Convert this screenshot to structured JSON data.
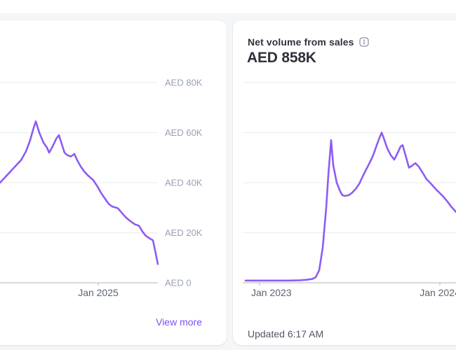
{
  "theme": {
    "background": "#f5f6f8",
    "card_background": "#ffffff",
    "line_color": "#8c5cf5",
    "grid_color": "#e9ebf0",
    "axis_color": "#adb5c1",
    "y_label_color": "#98a1b2",
    "x_label_color": "#5b6372",
    "link_color": "#7a52f6",
    "title_color": "#30313d",
    "muted_text_color": "#4f5766"
  },
  "cards": {
    "left": {
      "view_more_label": "View more"
    },
    "right": {
      "title": "Net volume from sales",
      "info_icon": "info-tooltip-icon",
      "value": "AED 858K",
      "updated": "Updated 6:17 AM"
    }
  },
  "chart_data": [
    {
      "id": "left-chart",
      "type": "line",
      "unit": "AED thousands",
      "ylim": [
        0,
        80
      ],
      "grid": true,
      "legend": "none",
      "y_gridlines": [
        {
          "value": 80,
          "label": "AED 80K"
        },
        {
          "value": 60,
          "label": "AED 60K"
        },
        {
          "value": 40,
          "label": "AED 40K"
        },
        {
          "value": 20,
          "label": "AED 20K"
        },
        {
          "value": 0,
          "label": "AED 0"
        }
      ],
      "x_ticks": [
        {
          "x": 180,
          "label": "Jan 2025",
          "anchor": "middle"
        }
      ],
      "points": [
        [
          40,
          40
        ],
        [
          50,
          43
        ],
        [
          60,
          46
        ],
        [
          70,
          49
        ],
        [
          77,
          52.5
        ],
        [
          83,
          57
        ],
        [
          87,
          61
        ],
        [
          91,
          64.5
        ],
        [
          96,
          60
        ],
        [
          102,
          56
        ],
        [
          107,
          54
        ],
        [
          110,
          52
        ],
        [
          115,
          54.5
        ],
        [
          120,
          57.5
        ],
        [
          124,
          59
        ],
        [
          128,
          55.5
        ],
        [
          132,
          52
        ],
        [
          136,
          51
        ],
        [
          141,
          50.5
        ],
        [
          146,
          51.5
        ],
        [
          150,
          49
        ],
        [
          155,
          46.5
        ],
        [
          160,
          44.5
        ],
        [
          165,
          43
        ],
        [
          173,
          41
        ],
        [
          180,
          38
        ],
        [
          185,
          35.5
        ],
        [
          190,
          33.5
        ],
        [
          195,
          31.5
        ],
        [
          200,
          30.5
        ],
        [
          208,
          29.8
        ],
        [
          215,
          27.5
        ],
        [
          220,
          26
        ],
        [
          225,
          24.8
        ],
        [
          232,
          23.4
        ],
        [
          238,
          22.8
        ],
        [
          243,
          20.5
        ],
        [
          247,
          19
        ],
        [
          253,
          17.8
        ],
        [
          258,
          17
        ],
        [
          261,
          13
        ],
        [
          265,
          7.5
        ]
      ]
    },
    {
      "id": "right-chart",
      "type": "line",
      "unit": "AED thousands",
      "ylim": [
        0,
        80
      ],
      "grid": true,
      "legend": "none",
      "y_gridlines": [
        {
          "value": 80,
          "label": null
        },
        {
          "value": 60,
          "label": null
        },
        {
          "value": 40,
          "label": null
        },
        {
          "value": 20,
          "label": null
        },
        {
          "value": 0,
          "label": null
        }
      ],
      "x_ticks": [
        {
          "x": 38,
          "label": "Jan 2023",
          "anchor": "start",
          "label_x": 26
        },
        {
          "x": 295,
          "label": "Jan 2024",
          "anchor": "middle"
        }
      ],
      "points": [
        [
          18,
          0.9
        ],
        [
          40,
          0.9
        ],
        [
          60,
          0.9
        ],
        [
          80,
          0.9
        ],
        [
          95,
          1.0
        ],
        [
          105,
          1.2
        ],
        [
          113,
          1.5
        ],
        [
          118,
          2.2
        ],
        [
          123,
          5
        ],
        [
          128,
          14
        ],
        [
          133,
          30
        ],
        [
          136,
          43
        ],
        [
          140,
          57
        ],
        [
          143,
          47
        ],
        [
          148,
          40
        ],
        [
          153,
          36.5
        ],
        [
          156,
          35
        ],
        [
          160,
          34.7
        ],
        [
          165,
          35
        ],
        [
          170,
          36
        ],
        [
          175,
          37.5
        ],
        [
          180,
          39.5
        ],
        [
          185,
          42.5
        ],
        [
          190,
          45.3
        ],
        [
          195,
          48
        ],
        [
          200,
          51
        ],
        [
          205,
          55
        ],
        [
          209,
          58
        ],
        [
          212,
          60
        ],
        [
          216,
          57
        ],
        [
          220,
          53.7
        ],
        [
          225,
          51
        ],
        [
          230,
          49.2
        ],
        [
          235,
          52
        ],
        [
          239,
          54.5
        ],
        [
          242,
          55
        ],
        [
          246,
          51
        ],
        [
          251,
          46
        ],
        [
          255,
          46.7
        ],
        [
          260,
          47.8
        ],
        [
          265,
          46.4
        ],
        [
          270,
          44.2
        ],
        [
          276,
          41.4
        ],
        [
          282,
          39.7
        ],
        [
          288,
          37.8
        ],
        [
          294,
          36.1
        ],
        [
          300,
          34.4
        ],
        [
          306,
          32.4
        ],
        [
          311,
          30.5
        ],
        [
          318,
          28.3
        ],
        [
          326,
          26.5
        ]
      ]
    }
  ]
}
